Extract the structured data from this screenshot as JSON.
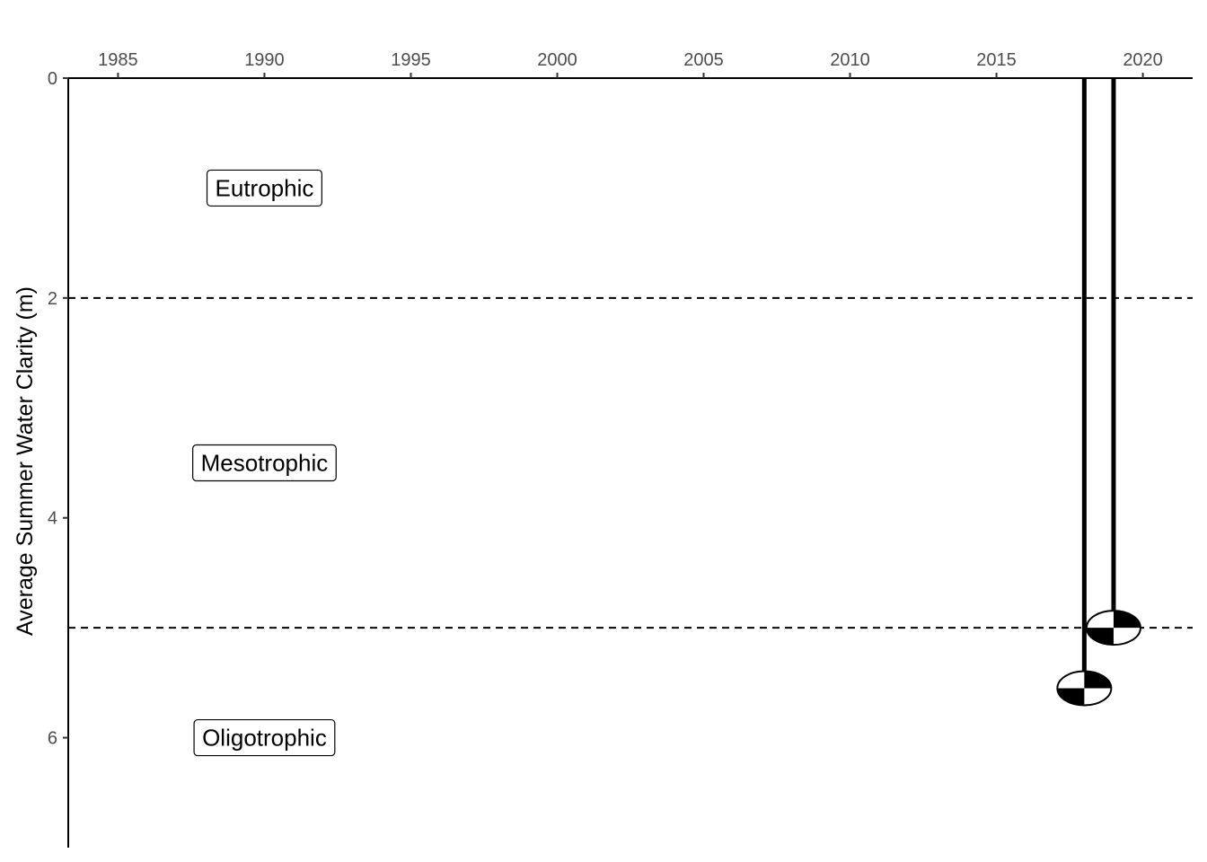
{
  "chart_data": {
    "type": "scatter",
    "title": "",
    "xlabel": "",
    "ylabel": "Average Summer Water Clarity (m)",
    "x_axis_position": "top",
    "y_axis_reversed": true,
    "xlim": [
      1983.3,
      2021.7
    ],
    "ylim": [
      0,
      7
    ],
    "x_ticks": [
      "1985",
      "1990",
      "1995",
      "2000",
      "2005",
      "2010",
      "2015",
      "2020"
    ],
    "y_ticks": [
      "0",
      "2",
      "4",
      "6"
    ],
    "grid": false,
    "reference_lines": [
      {
        "y": 2,
        "style": "dashed"
      },
      {
        "y": 5,
        "style": "dashed"
      }
    ],
    "zone_labels": [
      {
        "text": "Eutrophic",
        "x": 1990,
        "y": 1.0
      },
      {
        "text": "Mesotrophic",
        "x": 1990,
        "y": 3.5
      },
      {
        "text": "Oligotrophic",
        "x": 1990,
        "y": 6.0
      }
    ],
    "series": [
      {
        "marker": "secchi-disk",
        "points": [
          {
            "x": 2018,
            "y": 5.55
          },
          {
            "x": 2019,
            "y": 5.0
          }
        ]
      }
    ],
    "colors": {
      "line": "#000000",
      "tick_text": "#4d4d4d",
      "disk_dark": "#000000",
      "disk_light": "#ffffff"
    }
  }
}
